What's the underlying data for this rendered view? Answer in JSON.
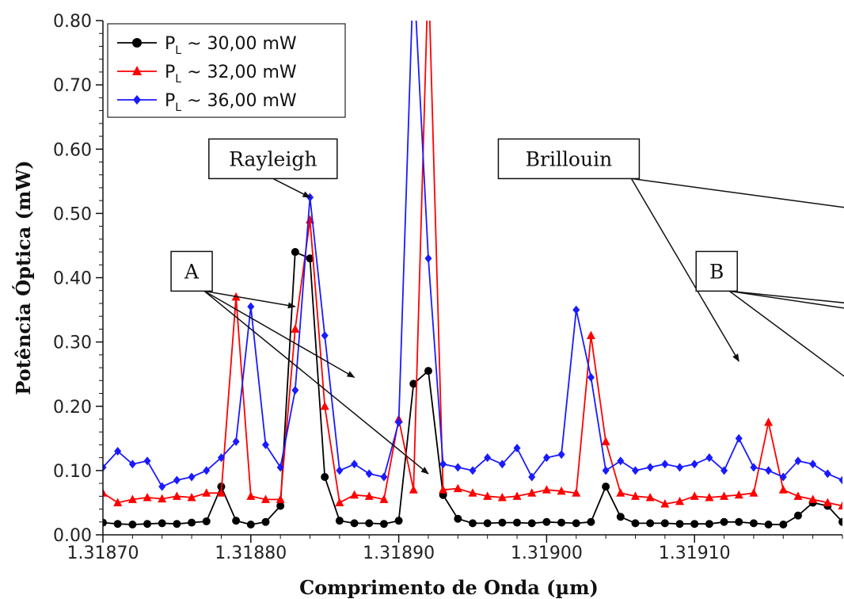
{
  "chart_data": {
    "type": "line",
    "title": "",
    "xlabel": "Comprimento de Onda (µm)",
    "ylabel": "Potência Óptica (mW)",
    "xlim": [
      1.3187,
      1.3192
    ],
    "ylim": [
      0.0,
      0.8
    ],
    "x_ticks": [
      1.3187,
      1.3188,
      1.3189,
      1.319,
      1.3191
    ],
    "x_tick_labels": [
      "1.31870",
      "1.31880",
      "1.31890",
      "1.31900",
      "1.31910"
    ],
    "y_ticks": [
      0.0,
      0.1,
      0.2,
      0.3,
      0.4,
      0.5,
      0.6,
      0.7,
      0.8
    ],
    "y_tick_labels": [
      "0.00",
      "0.10",
      "0.20",
      "0.30",
      "0.40",
      "0.50",
      "0.60",
      "0.70",
      "0.80"
    ],
    "legend_position": "top-left",
    "grid": false,
    "series": [
      {
        "name": "P_L ~ 30,00 mW",
        "name_main": "P",
        "name_sub": "L",
        "name_rest": " ~ 30,00 mW",
        "color": "#000000",
        "marker": "circle",
        "x": [
          1.3187,
          1.31871,
          1.31872,
          1.31873,
          1.31874,
          1.31875,
          1.31876,
          1.31877,
          1.31878,
          1.31879,
          1.3188,
          1.31881,
          1.31882,
          1.31883,
          1.31884,
          1.31885,
          1.31886,
          1.31887,
          1.31888,
          1.31889,
          1.3189,
          1.31891,
          1.31892,
          1.31893,
          1.31894,
          1.31895,
          1.31896,
          1.31897,
          1.31898,
          1.31899,
          1.319,
          1.31901,
          1.31902,
          1.31903,
          1.31904,
          1.31905,
          1.31906,
          1.31907,
          1.31908,
          1.31909,
          1.3191,
          1.31911,
          1.31912,
          1.31913,
          1.31914,
          1.31915,
          1.31916,
          1.31917,
          1.31918,
          1.31919,
          1.3192
        ],
        "y": [
          0.019,
          0.017,
          0.016,
          0.017,
          0.018,
          0.017,
          0.019,
          0.021,
          0.075,
          0.022,
          0.016,
          0.02,
          0.045,
          0.44,
          0.43,
          0.09,
          0.022,
          0.018,
          0.018,
          0.017,
          0.022,
          0.235,
          0.255,
          0.062,
          0.025,
          0.018,
          0.018,
          0.019,
          0.019,
          0.018,
          0.02,
          0.019,
          0.018,
          0.02,
          0.075,
          0.028,
          0.018,
          0.018,
          0.018,
          0.017,
          0.017,
          0.017,
          0.02,
          0.02,
          0.018,
          0.016,
          0.016,
          0.03,
          0.05,
          0.045,
          0.02
        ]
      },
      {
        "name": "P_L ~ 32,00 mW",
        "name_main": "P",
        "name_sub": "L",
        "name_rest": " ~ 32,00 mW",
        "color": "#ff0000",
        "marker": "triangle",
        "x": [
          1.3187,
          1.31871,
          1.31872,
          1.31873,
          1.31874,
          1.31875,
          1.31876,
          1.31877,
          1.31878,
          1.31879,
          1.3188,
          1.31881,
          1.31882,
          1.31883,
          1.31884,
          1.31885,
          1.31886,
          1.31887,
          1.31888,
          1.31889,
          1.3189,
          1.31891,
          1.31892,
          1.31893,
          1.31894,
          1.31895,
          1.31896,
          1.31897,
          1.31898,
          1.31899,
          1.319,
          1.31901,
          1.31902,
          1.31903,
          1.31904,
          1.31905,
          1.31906,
          1.31907,
          1.31908,
          1.31909,
          1.3191,
          1.31911,
          1.31912,
          1.31913,
          1.31914,
          1.31915,
          1.31916,
          1.31917,
          1.31918,
          1.31919,
          1.3192
        ],
        "y": [
          0.065,
          0.05,
          0.055,
          0.058,
          0.056,
          0.06,
          0.058,
          0.065,
          0.065,
          0.37,
          0.06,
          0.055,
          0.055,
          0.32,
          0.49,
          0.2,
          0.05,
          0.062,
          0.06,
          0.055,
          0.18,
          0.07,
          0.88,
          0.07,
          0.072,
          0.065,
          0.06,
          0.058,
          0.06,
          0.065,
          0.07,
          0.068,
          0.065,
          0.31,
          0.145,
          0.065,
          0.06,
          0.058,
          0.048,
          0.052,
          0.06,
          0.058,
          0.06,
          0.062,
          0.065,
          0.175,
          0.07,
          0.06,
          0.055,
          0.05,
          0.045
        ]
      },
      {
        "name": "P_L ~ 36,00 mW",
        "name_main": "P",
        "name_sub": "L",
        "name_rest": " ~ 36,00 mW",
        "color": "#1a1aff",
        "marker": "diamond",
        "x": [
          1.3187,
          1.31871,
          1.31872,
          1.31873,
          1.31874,
          1.31875,
          1.31876,
          1.31877,
          1.31878,
          1.31879,
          1.3188,
          1.31881,
          1.31882,
          1.31883,
          1.31884,
          1.31885,
          1.31886,
          1.31887,
          1.31888,
          1.31889,
          1.3189,
          1.31891,
          1.31892,
          1.31893,
          1.31894,
          1.31895,
          1.31896,
          1.31897,
          1.31898,
          1.31899,
          1.319,
          1.31901,
          1.31902,
          1.31903,
          1.31904,
          1.31905,
          1.31906,
          1.31907,
          1.31908,
          1.31909,
          1.3191,
          1.31911,
          1.31912,
          1.31913,
          1.31914,
          1.31915,
          1.31916,
          1.31917,
          1.31918,
          1.31919,
          1.3192
        ],
        "y": [
          0.105,
          0.13,
          0.11,
          0.115,
          0.075,
          0.085,
          0.09,
          0.1,
          0.12,
          0.145,
          0.355,
          0.14,
          0.105,
          0.225,
          0.525,
          0.31,
          0.1,
          0.11,
          0.095,
          0.09,
          0.175,
          0.88,
          0.43,
          0.11,
          0.105,
          0.1,
          0.12,
          0.11,
          0.135,
          0.09,
          0.12,
          0.125,
          0.35,
          0.245,
          0.1,
          0.115,
          0.1,
          0.105,
          0.11,
          0.105,
          0.11,
          0.12,
          0.1,
          0.15,
          0.105,
          0.1,
          0.09,
          0.115,
          0.11,
          0.095,
          0.085
        ]
      }
    ],
    "annotations": [
      {
        "text": "Rayleigh",
        "box_center": [
          1.318815,
          0.585
        ],
        "arrows": [
          [
            1.31884,
            0.525
          ]
        ]
      },
      {
        "text": "Brillouin",
        "box_center": [
          1.319015,
          0.585
        ],
        "arrows": [
          [
            1.319215,
            0.505
          ],
          [
            1.31913,
            0.27
          ]
        ]
      },
      {
        "text": "A",
        "box_center": [
          1.31876,
          0.41
        ],
        "arrows": [
          [
            1.31883,
            0.355
          ],
          [
            1.31887,
            0.245
          ],
          [
            1.31892,
            0.095
          ]
        ]
      },
      {
        "text": "B",
        "box_center": [
          1.319115,
          0.41
        ],
        "arrows": [
          [
            1.31929,
            0.34
          ],
          [
            1.31937,
            0.295
          ],
          [
            1.31929,
            0.095
          ]
        ]
      }
    ]
  }
}
